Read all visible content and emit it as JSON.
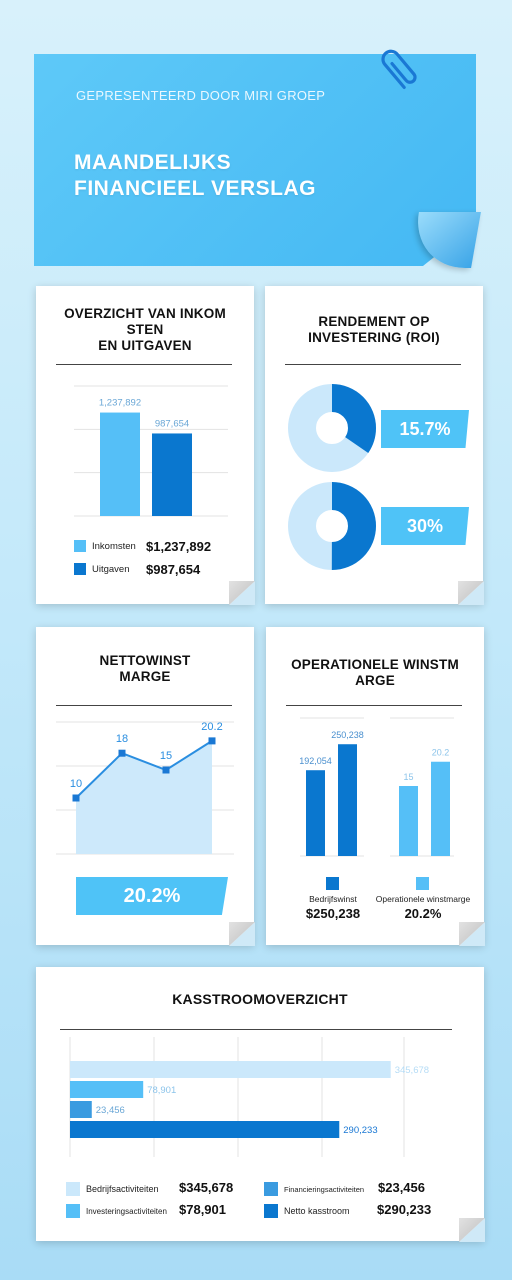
{
  "header": {
    "presented_by": "GEPRESENTEERD DOOR MIRI GROEP",
    "title": "MAANDELIJKS\nFINANCIEEL VERSLAG",
    "clip_icon": "paperclip-icon"
  },
  "colors": {
    "light_blue": "#55bff7",
    "dark_blue": "#0a77cf",
    "pale_blue": "#cbe8fb",
    "accent": "#4fc3f7"
  },
  "income": {
    "title": "OVERZICHT VAN INKOM\nSTEN\nEN UITGAVEN",
    "legend": [
      {
        "label": "Inkomsten",
        "value": "$1,237,892"
      },
      {
        "label": "Uitgaven",
        "value": "$987,654"
      }
    ]
  },
  "roi": {
    "title": "RENDEMENT OP\nINVESTERING (ROI)",
    "items": [
      {
        "value_label": "15.7%"
      },
      {
        "value_label": "30%"
      }
    ]
  },
  "net_margin": {
    "title": "NETTOWINST\nMARGE",
    "highlight": "20.2%"
  },
  "op_margin": {
    "title": "OPERATIONELE WINSTM\nARGE",
    "legend": [
      {
        "label": "Bedrijfswinst",
        "value": "$250,238"
      },
      {
        "label": "Operationele winstmarge",
        "value": "20.2%"
      }
    ]
  },
  "cashflow": {
    "title": "KASSTROOMOVERZICHT",
    "legend": [
      {
        "label": "Bedrijfsactiviteiten",
        "value": "$345,678"
      },
      {
        "label": "Financieringsactiviteiten",
        "value": "$23,456"
      },
      {
        "label": "Investeringsactiviteiten",
        "value": "$78,901"
      },
      {
        "label": "Netto kasstroom",
        "value": "$290,233"
      }
    ]
  },
  "chart_data": [
    {
      "type": "bar",
      "title": "OVERZICHT VAN INKOMSTEN EN UITGAVEN",
      "categories": [
        "Inkomsten",
        "Uitgaven"
      ],
      "values": [
        1237892,
        987654
      ],
      "value_labels": [
        "1,237,892",
        "987,654"
      ],
      "grid": true
    },
    {
      "type": "pie",
      "title": "RENDEMENT OP INVESTERING (ROI)",
      "values": [
        15.7,
        30
      ],
      "unit": "%"
    },
    {
      "type": "area",
      "title": "NETTOWINST MARGE",
      "values": [
        10,
        18,
        15,
        20.2
      ],
      "value_labels": [
        "10",
        "18",
        "15",
        "20.2"
      ],
      "grid": true
    },
    {
      "type": "bar",
      "title": "OPERATIONELE WINSTMARGE",
      "groups": [
        {
          "name": "Bedrijfswinst",
          "values": [
            192054,
            250238
          ],
          "value_labels": [
            "192,054",
            "250,238"
          ]
        },
        {
          "name": "Operationele winstmarge",
          "values": [
            15,
            20.2
          ],
          "value_labels": [
            "15",
            "20.2"
          ]
        }
      ]
    },
    {
      "type": "bar",
      "orientation": "horizontal",
      "title": "KASSTROOMOVERZICHT",
      "categories": [
        "Bedrijfsactiviteiten",
        "Investeringsactiviteiten",
        "Financieringsactiviteiten",
        "Netto kasstroom"
      ],
      "values": [
        345678,
        78901,
        23456,
        290233
      ],
      "value_labels": [
        "345,678",
        "78,901",
        "23,456",
        "290,233"
      ],
      "grid": true
    }
  ]
}
